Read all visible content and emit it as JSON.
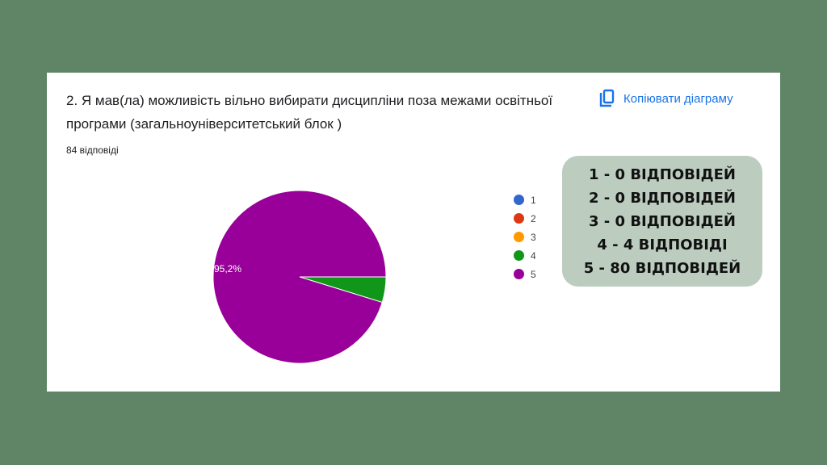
{
  "question": {
    "title": "2. Я мав(ла)  можливість вільно вибирати дисципліни поза межами освітньої програми (загальноуніверситетський блок )",
    "responses": "84 відповіді"
  },
  "copy_button": {
    "label": "Копіювати діаграму",
    "icon": "copy-icon"
  },
  "chart_data": {
    "type": "pie",
    "categories": [
      "1",
      "2",
      "3",
      "4",
      "5"
    ],
    "values": [
      0,
      0,
      0,
      4,
      80
    ],
    "colors": [
      "#3366cc",
      "#dc3912",
      "#ff9900",
      "#109618",
      "#990099"
    ],
    "data_labels": [
      "",
      "",
      "",
      "",
      "95,2%"
    ],
    "legend_position": "right"
  },
  "summary": [
    "1 - 0 ВІДПОВІДЕЙ",
    "2 - 0 ВІДПОВІДЕЙ",
    "3 - 0 ВІДПОВІДЕЙ",
    "4 - 4 ВІДПОВІДІ",
    "5 - 80 ВІДПОВІДЕЙ"
  ]
}
